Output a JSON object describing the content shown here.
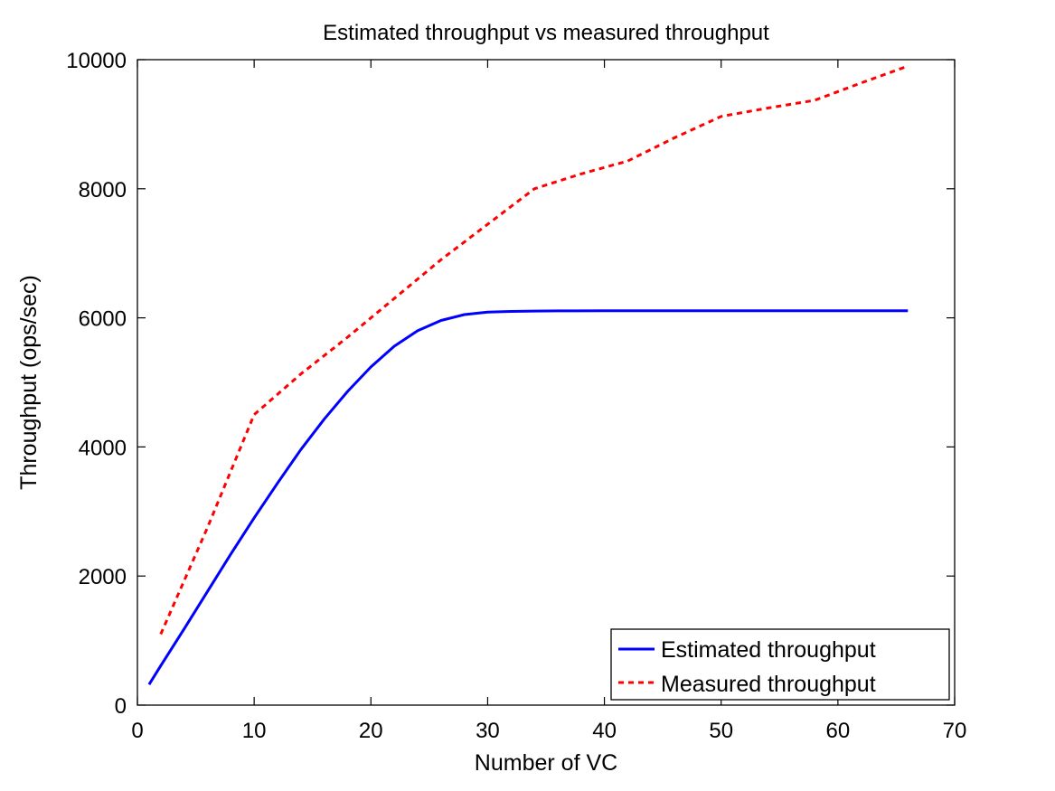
{
  "chart_data": {
    "type": "line",
    "title": "Estimated throughput vs measured throughput",
    "xlabel": "Number of VC",
    "ylabel": "Throughput (ops/sec)",
    "xlim": [
      0,
      70
    ],
    "ylim": [
      0,
      10000
    ],
    "xticks": [
      0,
      10,
      20,
      30,
      40,
      50,
      60,
      70
    ],
    "yticks": [
      0,
      2000,
      4000,
      6000,
      8000,
      10000
    ],
    "xtick_labels": [
      "0",
      "10",
      "20",
      "30",
      "40",
      "50",
      "60",
      "70"
    ],
    "ytick_labels": [
      "0",
      "2000",
      "4000",
      "6000",
      "8000",
      "10000"
    ],
    "grid": false,
    "legend_position": "bottom-right",
    "series": [
      {
        "name": "Estimated throughput",
        "color": "#0000ff",
        "style": "solid",
        "x": [
          1,
          2,
          4,
          6,
          8,
          10,
          12,
          14,
          16,
          18,
          20,
          22,
          24,
          26,
          28,
          30,
          32,
          34,
          36,
          40,
          45,
          50,
          55,
          60,
          66
        ],
        "y": [
          320,
          610,
          1180,
          1760,
          2340,
          2900,
          3440,
          3960,
          4430,
          4860,
          5240,
          5560,
          5800,
          5960,
          6050,
          6090,
          6100,
          6105,
          6108,
          6110,
          6110,
          6110,
          6110,
          6110,
          6110
        ]
      },
      {
        "name": "Measured throughput",
        "color": "#ff0000",
        "style": "dashed",
        "x": [
          2,
          6,
          10,
          14,
          18,
          22,
          26,
          30,
          34,
          38,
          42,
          46,
          50,
          54,
          58,
          62,
          66
        ],
        "y": [
          1100,
          2750,
          4500,
          5130,
          5700,
          6300,
          6900,
          7450,
          8000,
          8230,
          8430,
          8790,
          9120,
          9250,
          9370,
          9640,
          9900
        ]
      }
    ]
  }
}
